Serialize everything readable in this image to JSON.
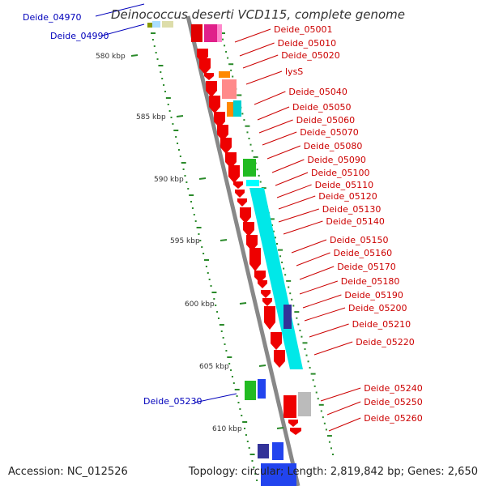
{
  "title": "Deinococcus deserti VCD115, complete genome",
  "footer": {
    "accession": "Accession: NC_012526",
    "summary": "Topology: circular; Length: 2,819,842 bp; Genes: 2,650"
  },
  "colors": {
    "backbone": "#888888",
    "label_red": "#cc0000",
    "label_blue": "#0000bb",
    "tick": "#2a8a2a"
  },
  "scale_labels": [
    "580 kbp",
    "585 kbp",
    "590 kbp",
    "595 kbp",
    "600 kbp",
    "605 kbp",
    "610 kbp"
  ],
  "genes_right": [
    "Deide_05001",
    "Deide_05010",
    "Deide_05020",
    "lysS",
    "Deide_05040",
    "Deide_05050",
    "Deide_05060",
    "Deide_05070",
    "Deide_05080",
    "Deide_05090",
    "Deide_05100",
    "Deide_05110",
    "Deide_05120",
    "Deide_05130",
    "Deide_05140",
    "Deide_05150",
    "Deide_05160",
    "Deide_05170",
    "Deide_05180",
    "Deide_05190",
    "Deide_05200",
    "Deide_05210",
    "Deide_05220",
    "Deide_05240",
    "Deide_05250",
    "Deide_05260"
  ],
  "genes_left": [
    "Deide_04970",
    "Deide_04990",
    "Deide_05230"
  ]
}
